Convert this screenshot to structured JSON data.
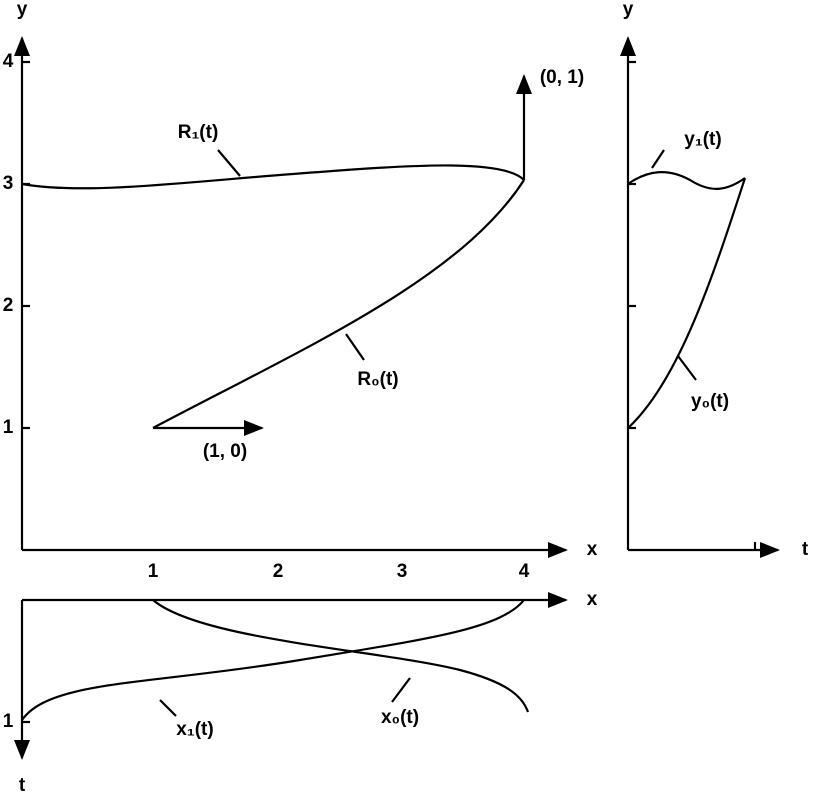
{
  "main_plot": {
    "y_axis_label": "y",
    "x_axis_label": "x",
    "x_ticks": [
      "1",
      "2",
      "3",
      "4"
    ],
    "y_ticks": [
      "1",
      "2",
      "3",
      "4"
    ],
    "curves": [
      "R₁(t)",
      "R₀(t)"
    ],
    "vectors": [
      "(1, 0)",
      "(0, 1)"
    ]
  },
  "bottom_plot": {
    "x_axis_label": "x",
    "t_axis_label": "t",
    "t_ticks": [
      "1"
    ],
    "curves": [
      "x₁(t)",
      "x₀(t)"
    ]
  },
  "right_plot": {
    "y_axis_label": "y",
    "t_axis_label": "t",
    "curves": [
      "y₁(t)",
      "y₀(t)"
    ]
  }
}
